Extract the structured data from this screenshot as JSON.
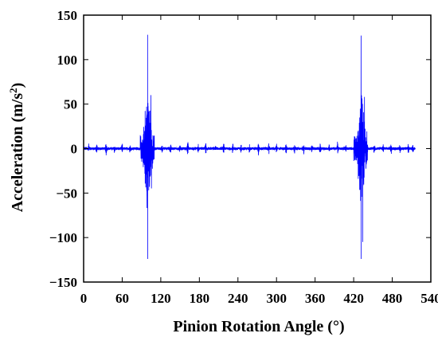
{
  "chart_data": {
    "type": "line",
    "xlabel": "Pinion Rotation Angle (°)",
    "ylabel_main": "Acceleration (m/s",
    "ylabel_sup": "2",
    "ylabel_tail": ")",
    "xlim": [
      0,
      540
    ],
    "ylim": [
      -150,
      150
    ],
    "xticks": [
      0,
      60,
      120,
      180,
      240,
      300,
      360,
      420,
      480,
      540
    ],
    "yticks": [
      150,
      100,
      50,
      0,
      -50,
      -100,
      -150
    ],
    "grid": false,
    "line_color": "#0000ff",
    "series": [
      {
        "x_start": 0,
        "x_end": 516,
        "baseline_noise_amplitude": 1.5,
        "minor_spikes": [
          {
            "x": 8,
            "amp": 4
          },
          {
            "x": 20,
            "amp": 3
          },
          {
            "x": 35,
            "amp": 5
          },
          {
            "x": 48,
            "amp": 3
          },
          {
            "x": 60,
            "amp": 4
          },
          {
            "x": 72,
            "amp": 3
          },
          {
            "x": 108,
            "amp": 4
          },
          {
            "x": 122,
            "amp": 3
          },
          {
            "x": 135,
            "amp": 4
          },
          {
            "x": 150,
            "amp": 3
          },
          {
            "x": 162,
            "amp": 5
          },
          {
            "x": 178,
            "amp": 3
          },
          {
            "x": 190,
            "amp": 4
          },
          {
            "x": 205,
            "amp": 3
          },
          {
            "x": 218,
            "amp": 4
          },
          {
            "x": 232,
            "amp": 5
          },
          {
            "x": 245,
            "amp": 3
          },
          {
            "x": 258,
            "amp": 4
          },
          {
            "x": 272,
            "amp": 5
          },
          {
            "x": 288,
            "amp": 4
          },
          {
            "x": 300,
            "amp": 3
          },
          {
            "x": 315,
            "amp": 4
          },
          {
            "x": 328,
            "amp": 3
          },
          {
            "x": 342,
            "amp": 5
          },
          {
            "x": 355,
            "amp": 3
          },
          {
            "x": 368,
            "amp": 4
          },
          {
            "x": 382,
            "amp": 3
          },
          {
            "x": 395,
            "amp": 5
          },
          {
            "x": 408,
            "amp": 3
          },
          {
            "x": 452,
            "amp": 4
          },
          {
            "x": 466,
            "amp": 3
          },
          {
            "x": 478,
            "amp": 5
          },
          {
            "x": 492,
            "amp": 3
          },
          {
            "x": 505,
            "amp": 4
          },
          {
            "x": 512,
            "amp": 3
          }
        ],
        "bursts": [
          {
            "x_start": 88,
            "x_end": 110,
            "peak_x": 100,
            "max": 128,
            "min": -124
          },
          {
            "x_start": 420,
            "x_end": 442,
            "peak_x": 432,
            "max": 127,
            "min": -124
          }
        ]
      }
    ]
  }
}
